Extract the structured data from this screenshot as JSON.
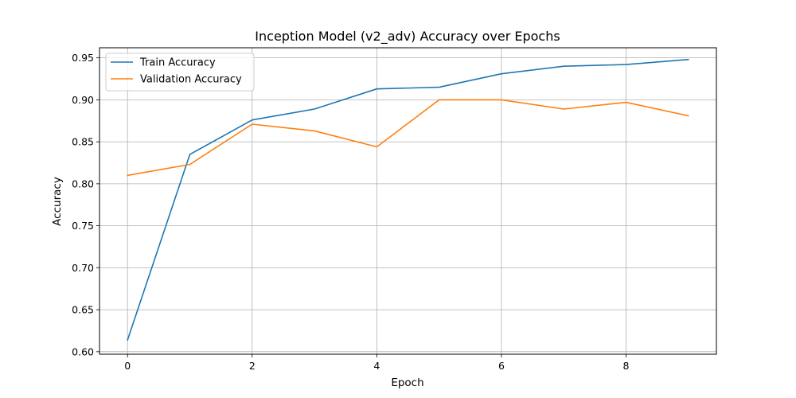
{
  "chart_data": {
    "type": "line",
    "title": "Inception Model (v2_adv) Accuracy over Epochs",
    "xlabel": "Epoch",
    "ylabel": "Accuracy",
    "x": [
      0,
      1,
      2,
      3,
      4,
      5,
      6,
      7,
      8,
      9
    ],
    "xticks": [
      "0",
      "2",
      "4",
      "6",
      "8"
    ],
    "yticks": [
      "0.60",
      "0.65",
      "0.70",
      "0.75",
      "0.80",
      "0.85",
      "0.90",
      "0.95"
    ],
    "xlim": [
      -0.45,
      9.45
    ],
    "ylim": [
      0.597,
      0.962
    ],
    "grid": true,
    "legend_position": "upper left",
    "series": [
      {
        "name": "Train Accuracy",
        "color": "#1f77b4",
        "values": [
          0.614,
          0.835,
          0.876,
          0.889,
          0.913,
          0.915,
          0.931,
          0.94,
          0.942,
          0.948
        ]
      },
      {
        "name": "Validation Accuracy",
        "color": "#ff7f0e",
        "values": [
          0.81,
          0.823,
          0.871,
          0.863,
          0.844,
          0.9,
          0.9,
          0.889,
          0.897,
          0.881
        ]
      }
    ]
  }
}
